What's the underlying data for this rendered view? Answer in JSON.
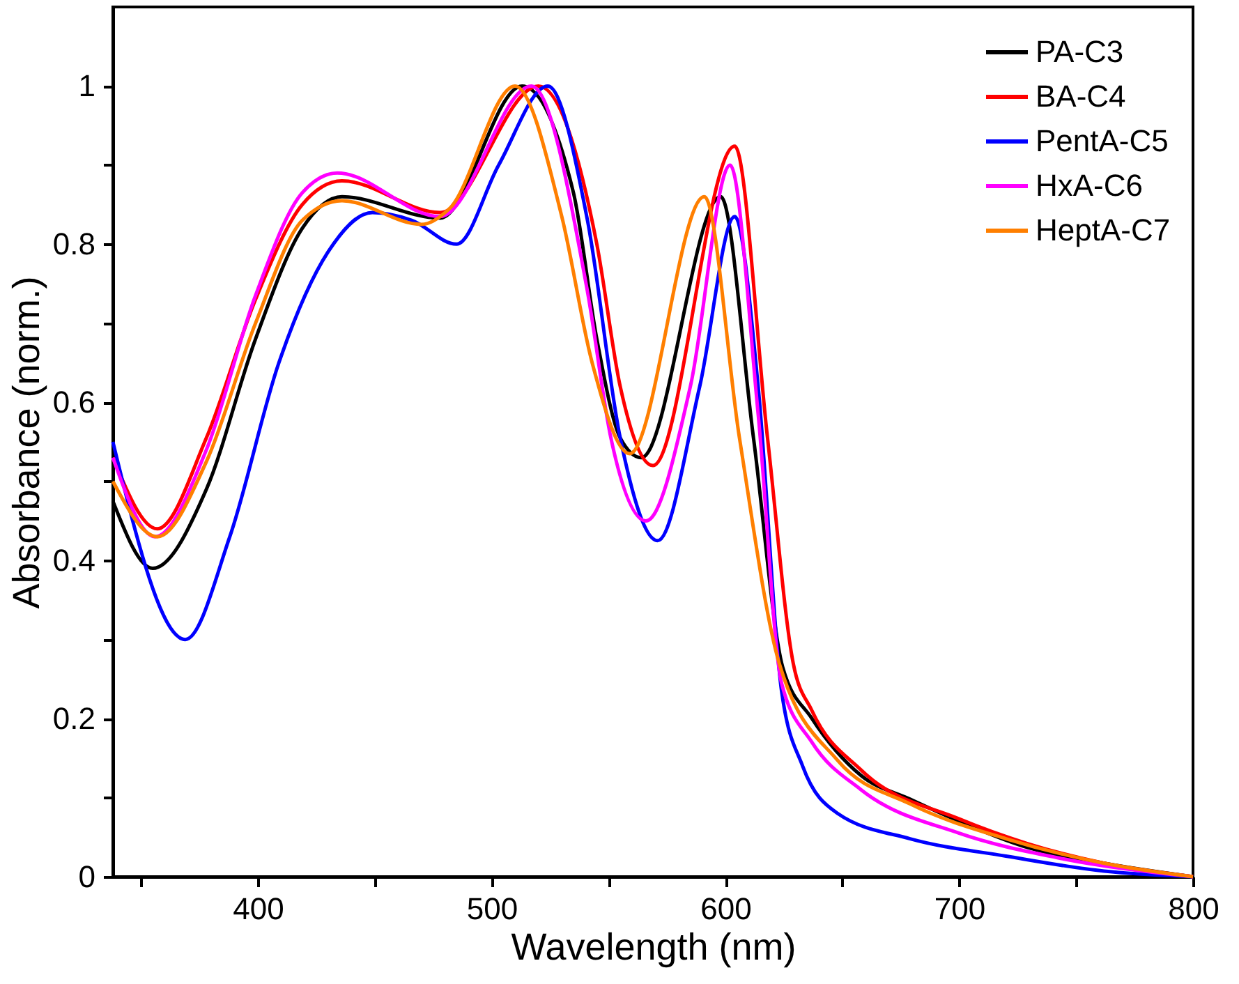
{
  "chart_data": {
    "type": "line",
    "xlabel": "Wavelength (nm)",
    "ylabel": "Absorbance (norm.)",
    "xlim": [
      338,
      800
    ],
    "ylim": [
      0,
      1.1
    ],
    "xticks": [
      {
        "value": 350,
        "label": null
      },
      400,
      {
        "value": 450,
        "label": null
      },
      500,
      {
        "value": 550,
        "label": null
      },
      600,
      {
        "value": 650,
        "label": null
      },
      700,
      {
        "value": 750,
        "label": null
      },
      800
    ],
    "yticks": [
      0,
      {
        "value": 0.1,
        "label": null
      },
      0.2,
      {
        "value": 0.3,
        "label": null
      },
      0.4,
      {
        "value": 0.5,
        "label": null
      },
      0.6,
      {
        "value": 0.7,
        "label": null
      },
      0.8,
      {
        "value": 0.9,
        "label": null
      },
      1
    ],
    "legend": "top right",
    "grid": false,
    "marker": "none",
    "line_style": "solid",
    "series": [
      {
        "name": "PA-C3",
        "color": "#000000",
        "x": [
          338,
          355,
          378,
          399,
          419,
          436,
          478,
          513,
          535,
          545,
          555,
          564,
          598,
          612,
          624.5,
          637,
          658,
          679,
          700,
          727,
          762,
          800
        ],
        "values": [
          0.475,
          0.39,
          0.49,
          0.68,
          0.82,
          0.86,
          0.833,
          1.0,
          0.865,
          0.68,
          0.555,
          0.53,
          0.86,
          0.555,
          0.265,
          0.2,
          0.128,
          0.098,
          0.07,
          0.039,
          0.017,
          0
        ]
      },
      {
        "name": "BA-C4",
        "color": "#ff0000",
        "x": [
          338,
          357,
          378,
          399,
          419,
          436,
          478,
          520,
          545,
          555,
          569,
          604,
          618,
          629,
          637,
          658,
          700,
          729,
          762,
          800
        ],
        "values": [
          0.53,
          0.44,
          0.555,
          0.73,
          0.85,
          0.88,
          0.84,
          1.0,
          0.8,
          0.62,
          0.52,
          0.924,
          0.555,
          0.27,
          0.21,
          0.135,
          0.073,
          0.042,
          0.017,
          0
        ]
      },
      {
        "name": "PentA-C5",
        "color": "#0000ff",
        "x": [
          338,
          369,
          388,
          409,
          430,
          449,
          466,
          485,
          503,
          524,
          541,
          555,
          571,
          589,
          604,
          614,
          624,
          633,
          648,
          679,
          720,
          762,
          800
        ],
        "values": [
          0.55,
          0.3,
          0.43,
          0.65,
          0.79,
          0.84,
          0.83,
          0.8,
          0.9,
          1.0,
          0.83,
          0.555,
          0.425,
          0.62,
          0.835,
          0.62,
          0.235,
          0.14,
          0.08,
          0.048,
          0.026,
          0.007,
          0
        ]
      },
      {
        "name": "HxA-C6",
        "color": "#ff00ff",
        "x": [
          338,
          356,
          378,
          399,
          419,
          434,
          478,
          517,
          541,
          551,
          566,
          585,
          602,
          614,
          624,
          637,
          658,
          700,
          742,
          800
        ],
        "values": [
          0.53,
          0.43,
          0.54,
          0.735,
          0.865,
          0.89,
          0.835,
          1.0,
          0.74,
          0.555,
          0.45,
          0.62,
          0.9,
          0.585,
          0.245,
          0.17,
          0.11,
          0.055,
          0.024,
          0
        ]
      },
      {
        "name": "HeptA-C7",
        "color": "#ff7f00",
        "x": [
          338,
          357,
          378,
          399,
          419,
          436,
          470,
          482,
          510,
          530,
          543,
          559,
          591,
          606,
          623,
          648,
          679,
          720,
          762,
          800
        ],
        "values": [
          0.5,
          0.43,
          0.525,
          0.7,
          0.83,
          0.855,
          0.825,
          0.845,
          1.0,
          0.835,
          0.65,
          0.535,
          0.86,
          0.555,
          0.27,
          0.147,
          0.092,
          0.048,
          0.017,
          0
        ]
      }
    ]
  }
}
